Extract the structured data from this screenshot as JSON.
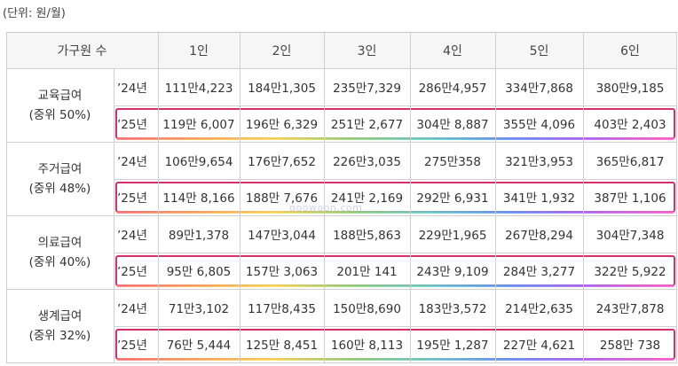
{
  "unit_label": "(단위: 원/월)",
  "watermark": "goowoon.com",
  "header": {
    "household_label": "가구원 수",
    "sizes": [
      "1인",
      "2인",
      "3인",
      "4인",
      "5인",
      "6인"
    ]
  },
  "groups": [
    {
      "name": "교육급여",
      "median": "(중위 50%)",
      "rows": [
        {
          "year": "’24년",
          "values": [
            "111만4,223",
            "184만1,305",
            "235만7,329",
            "286만4,957",
            "334만7,868",
            "380만9,185"
          ]
        },
        {
          "year": "’25년",
          "values": [
            "119만 6,007",
            "196만 6,329",
            "251만 2,677",
            "304만 8,887",
            "355만 4,096",
            "403만 2,403"
          ]
        }
      ]
    },
    {
      "name": "주거급여",
      "median": "(중위 48%)",
      "rows": [
        {
          "year": "’24년",
          "values": [
            "106만9,654",
            "176만7,652",
            "226만3,035",
            "275만358",
            "321만3,953",
            "365만6,817"
          ]
        },
        {
          "year": "’25년",
          "values": [
            "114만 8,166",
            "188만 7,676",
            "241만 2,169",
            "292만 6,931",
            "341만 1,932",
            "387만 1,106"
          ]
        }
      ]
    },
    {
      "name": "의료급여",
      "median": "(중위 40%)",
      "rows": [
        {
          "year": "’24년",
          "values": [
            "89만1,378",
            "147만3,044",
            "188만5,863",
            "229만1,965",
            "267만8,294",
            "304만7,348"
          ]
        },
        {
          "year": "’25년",
          "values": [
            "95만 6,805",
            "157만 3,063",
            "201만 141",
            "243만 9,109",
            "284만 3,277",
            "322만 5,922"
          ]
        }
      ]
    },
    {
      "name": "생계급여",
      "median": "(중위 32%)",
      "rows": [
        {
          "year": "’24년",
          "values": [
            "71만3,102",
            "117만8,435",
            "150만8,690",
            "183만3,572",
            "214만2,635",
            "243만7,878"
          ]
        },
        {
          "year": "’25년",
          "values": [
            "76만 5,444",
            "125만 8,451",
            "160만 8,113",
            "195만 1,287",
            "227만 4,621",
            "258만 738"
          ]
        }
      ]
    }
  ]
}
